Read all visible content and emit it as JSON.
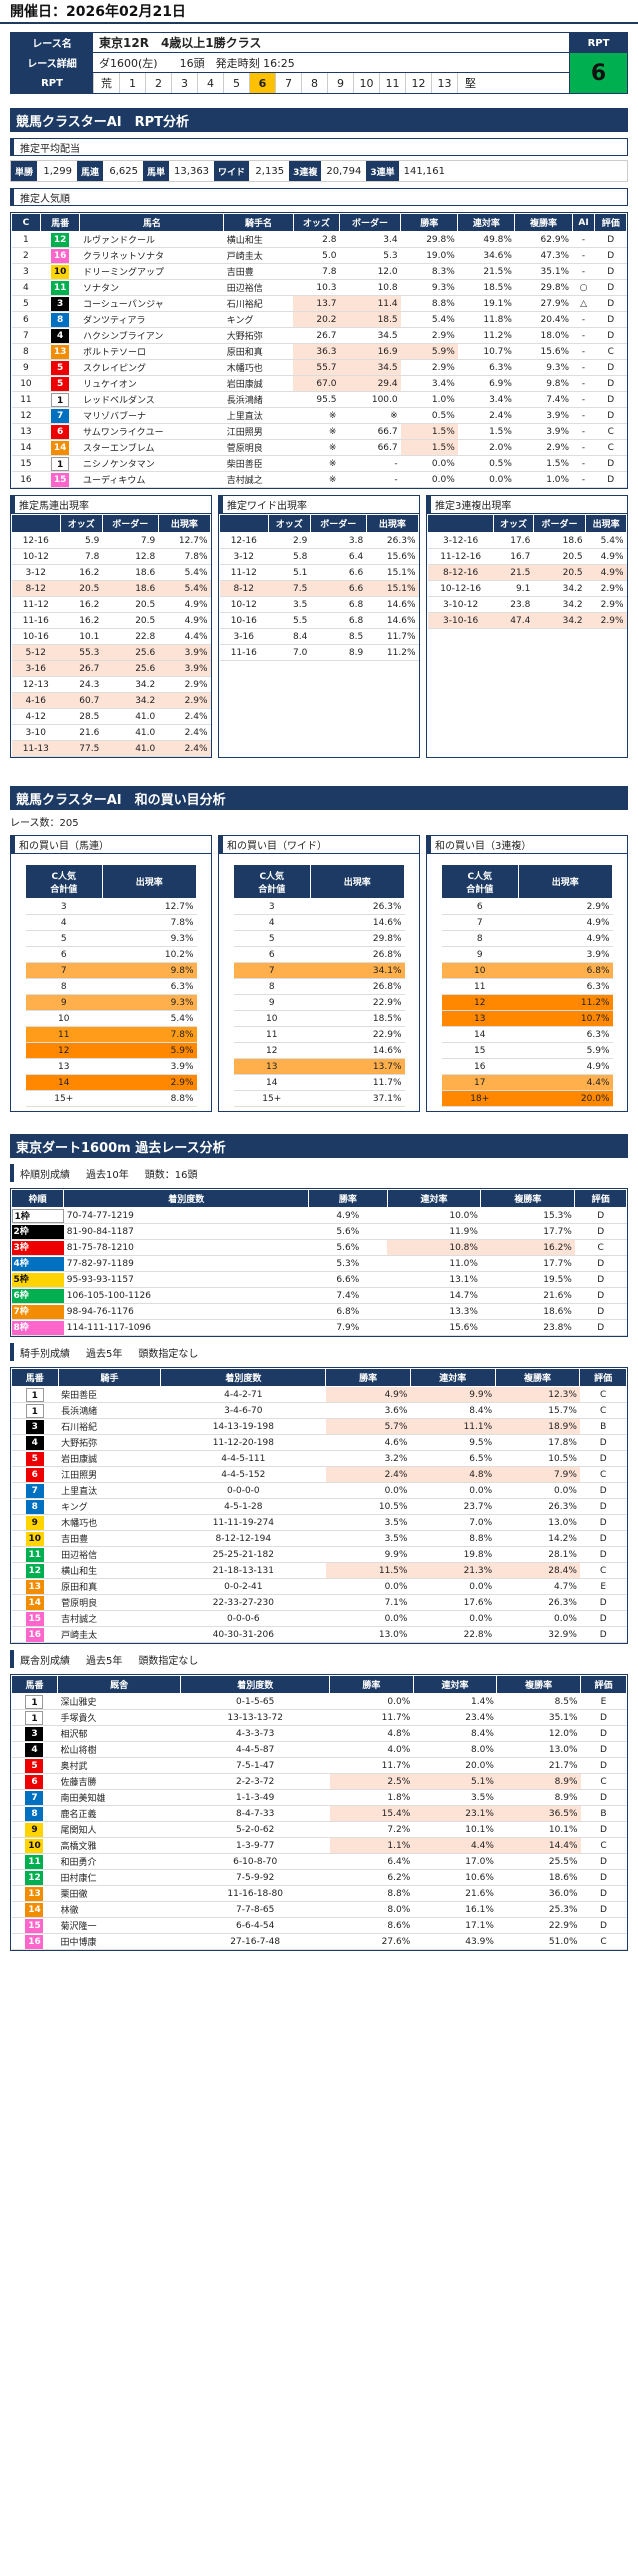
{
  "header": {
    "label": "開催日：",
    "date": "2026年02月21日"
  },
  "race": {
    "name_label": "レース名",
    "name": "東京12R　4歳以上1勝クラス",
    "detail_label": "レース詳細",
    "detail_course": "ダ1600(左)",
    "detail_heads": "16頭",
    "detail_time": "発走時刻 16:25",
    "rpt_label": "RPT",
    "rpt_first": "荒",
    "rpt_nums": [
      "1",
      "2",
      "3",
      "4",
      "5",
      "6",
      "7",
      "8",
      "9",
      "10",
      "11",
      "12",
      "13"
    ],
    "rpt_last": "堅",
    "rpt_selected": "6",
    "rpt_box_label": "RPT",
    "rpt_value": "6"
  },
  "sec1": {
    "title": "競馬クラスターAI　RPT分析"
  },
  "haito": {
    "title": "推定平均配当",
    "items": [
      [
        "単勝",
        "1,299"
      ],
      [
        "馬連",
        "6,625"
      ],
      [
        "馬単",
        "13,363"
      ],
      [
        "ワイド",
        "2,135"
      ],
      [
        "3連複",
        "20,794"
      ],
      [
        "3連単",
        "141,161"
      ]
    ]
  },
  "ninki": {
    "title": "推定人気順",
    "headers": [
      "C",
      "馬番",
      "馬名",
      "騎手名",
      "オッズ",
      "ボーダー",
      "勝率",
      "連対率",
      "複勝率",
      "AI",
      "評価"
    ],
    "rows": [
      [
        "1",
        "12",
        "ルヴァンドクール",
        "横山和生",
        "2.8",
        "3.4",
        "29.8%",
        "49.8%",
        "62.9%",
        "-",
        "D"
      ],
      [
        "2",
        "16",
        "クラリネットソナタ",
        "戸崎圭太",
        "5.0",
        "5.3",
        "19.0%",
        "34.6%",
        "47.3%",
        "-",
        "D"
      ],
      [
        "3",
        "10",
        "ドリーミングアップ",
        "吉田豊",
        "7.8",
        "12.0",
        "8.3%",
        "21.5%",
        "35.1%",
        "-",
        "D"
      ],
      [
        "4",
        "11",
        "ソナタン",
        "田辺裕信",
        "10.3",
        "10.8",
        "9.3%",
        "18.5%",
        "29.8%",
        "○",
        "D"
      ],
      [
        "5",
        "3",
        "コーシューパンジャ",
        "石川裕紀",
        "13.7",
        "11.4",
        "8.8%",
        "19.1%",
        "27.9%",
        "△",
        "D"
      ],
      [
        "6",
        "8",
        "ダンツティアラ",
        "キング",
        "20.2",
        "18.5",
        "5.4%",
        "11.8%",
        "20.4%",
        "-",
        "D"
      ],
      [
        "7",
        "4",
        "ハクシンブライアン",
        "大野拓弥",
        "26.7",
        "34.5",
        "2.9%",
        "11.2%",
        "18.0%",
        "-",
        "D"
      ],
      [
        "8",
        "13",
        "ボルトテソーロ",
        "原田和真",
        "36.3",
        "16.9",
        "5.9%",
        "10.7%",
        "15.6%",
        "-",
        "C"
      ],
      [
        "9",
        "5",
        "スクレイピング",
        "木幡巧也",
        "55.7",
        "34.5",
        "2.9%",
        "6.3%",
        "9.3%",
        "-",
        "D"
      ],
      [
        "10",
        "5",
        "リュケイオン",
        "岩田康誠",
        "67.0",
        "29.4",
        "3.4%",
        "6.9%",
        "9.8%",
        "-",
        "D"
      ],
      [
        "11",
        "1",
        "レッドベルダンス",
        "長浜鴻緒",
        "95.5",
        "100.0",
        "1.0%",
        "3.4%",
        "7.4%",
        "-",
        "D"
      ],
      [
        "12",
        "7",
        "マリゾバブーナ",
        "上里直汰",
        "※",
        "※",
        "0.5%",
        "2.4%",
        "3.9%",
        "-",
        "D"
      ],
      [
        "13",
        "6",
        "サムワンライクユー",
        "江田照男",
        "※",
        "66.7",
        "1.5%",
        "1.5%",
        "3.9%",
        "-",
        "C"
      ],
      [
        "14",
        "14",
        "スターエンブレム",
        "菅原明良",
        "※",
        "66.7",
        "1.5%",
        "2.0%",
        "2.9%",
        "-",
        "C"
      ],
      [
        "15",
        "1",
        "ニシノケンタマン",
        "柴田善臣",
        "※",
        "-",
        "0.0%",
        "0.5%",
        "1.5%",
        "-",
        "D"
      ],
      [
        "16",
        "15",
        "ユーディキウム",
        "吉村誠之",
        "※",
        "-",
        "0.0%",
        "0.0%",
        "1.0%",
        "-",
        "D"
      ]
    ]
  },
  "umaren": {
    "title": "推定馬連出現率",
    "headers": [
      "",
      "オッズ",
      "ボーダー",
      "出現率"
    ],
    "rows": [
      [
        "12-16",
        "5.9",
        "7.9",
        "12.7%"
      ],
      [
        "10-12",
        "7.8",
        "12.8",
        "7.8%"
      ],
      [
        "3-12",
        "16.2",
        "18.6",
        "5.4%"
      ],
      [
        "8-12",
        "20.5",
        "18.6",
        "5.4%"
      ],
      [
        "11-12",
        "16.2",
        "20.5",
        "4.9%"
      ],
      [
        "11-16",
        "16.2",
        "20.5",
        "4.9%"
      ],
      [
        "10-16",
        "10.1",
        "22.8",
        "4.4%"
      ],
      [
        "5-12",
        "55.3",
        "25.6",
        "3.9%"
      ],
      [
        "3-16",
        "26.7",
        "25.6",
        "3.9%"
      ],
      [
        "12-13",
        "24.3",
        "34.2",
        "2.9%"
      ],
      [
        "4-16",
        "60.7",
        "34.2",
        "2.9%"
      ],
      [
        "4-12",
        "28.5",
        "41.0",
        "2.4%"
      ],
      [
        "3-10",
        "21.6",
        "41.0",
        "2.4%"
      ],
      [
        "11-13",
        "77.5",
        "41.0",
        "2.4%"
      ]
    ]
  },
  "wide": {
    "title": "推定ワイド出現率",
    "headers": [
      "",
      "オッズ",
      "ボーダー",
      "出現率"
    ],
    "rows": [
      [
        "12-16",
        "2.9",
        "3.8",
        "26.3%"
      ],
      [
        "3-12",
        "5.8",
        "6.4",
        "15.6%"
      ],
      [
        "11-12",
        "5.1",
        "6.6",
        "15.1%"
      ],
      [
        "8-12",
        "7.5",
        "6.6",
        "15.1%"
      ],
      [
        "10-12",
        "3.5",
        "6.8",
        "14.6%"
      ],
      [
        "10-16",
        "5.5",
        "6.8",
        "14.6%"
      ],
      [
        "3-16",
        "8.4",
        "8.5",
        "11.7%"
      ],
      [
        "11-16",
        "7.0",
        "8.9",
        "11.2%"
      ]
    ]
  },
  "sanren": {
    "title": "推定3連複出現率",
    "headers": [
      "",
      "オッズ",
      "ボーダー",
      "出現率"
    ],
    "rows": [
      [
        "3-12-16",
        "17.6",
        "18.6",
        "5.4%"
      ],
      [
        "11-12-16",
        "16.7",
        "20.5",
        "4.9%"
      ],
      [
        "8-12-16",
        "21.5",
        "20.5",
        "4.9%"
      ],
      [
        "10-12-16",
        "9.1",
        "34.2",
        "2.9%"
      ],
      [
        "3-10-12",
        "23.8",
        "34.2",
        "2.9%"
      ],
      [
        "3-10-16",
        "47.4",
        "34.2",
        "2.9%"
      ]
    ]
  },
  "sec2": {
    "title": "競馬クラスターAI　和の買い目分析",
    "count_label": "レース数：",
    "count": "205"
  },
  "wa": [
    {
      "title": "和の買い目（馬連）",
      "h1": "C人気\n合計値",
      "h2": "出現率",
      "rows": [
        [
          "3",
          "12.7%"
        ],
        [
          "4",
          "7.8%"
        ],
        [
          "5",
          "9.3%"
        ],
        [
          "6",
          "10.2%"
        ],
        [
          "7",
          "9.8%"
        ],
        [
          "8",
          "6.3%"
        ],
        [
          "9",
          "9.3%"
        ],
        [
          "10",
          "5.4%"
        ],
        [
          "11",
          "7.8%"
        ],
        [
          "12",
          "5.9%"
        ],
        [
          "13",
          "3.9%"
        ],
        [
          "14",
          "2.9%"
        ],
        [
          "15+",
          "8.8%"
        ]
      ]
    },
    {
      "title": "和の買い目（ワイド）",
      "h1": "C人気\n合計値",
      "h2": "出現率",
      "rows": [
        [
          "3",
          "26.3%"
        ],
        [
          "4",
          "14.6%"
        ],
        [
          "5",
          "29.8%"
        ],
        [
          "6",
          "26.8%"
        ],
        [
          "7",
          "34.1%"
        ],
        [
          "8",
          "26.8%"
        ],
        [
          "9",
          "22.9%"
        ],
        [
          "10",
          "18.5%"
        ],
        [
          "11",
          "22.9%"
        ],
        [
          "12",
          "14.6%"
        ],
        [
          "13",
          "13.7%"
        ],
        [
          "14",
          "11.7%"
        ],
        [
          "15+",
          "37.1%"
        ]
      ]
    },
    {
      "title": "和の買い目（3連複）",
      "h1": "C人気\n合計値",
      "h2": "出現率",
      "rows": [
        [
          "6",
          "2.9%"
        ],
        [
          "7",
          "4.9%"
        ],
        [
          "8",
          "4.9%"
        ],
        [
          "9",
          "3.9%"
        ],
        [
          "10",
          "6.8%"
        ],
        [
          "11",
          "6.3%"
        ],
        [
          "12",
          "11.2%"
        ],
        [
          "13",
          "10.7%"
        ],
        [
          "14",
          "6.3%"
        ],
        [
          "15",
          "5.9%"
        ],
        [
          "16",
          "4.9%"
        ],
        [
          "17",
          "4.4%"
        ],
        [
          "18+",
          "20.0%"
        ]
      ]
    }
  ],
  "sec3": {
    "title": "東京ダート1600m 過去レース分析"
  },
  "waku": {
    "title": "枠順別成績",
    "cond1": "過去10年",
    "cond2": "頭数：16頭",
    "headers": [
      "枠順",
      "着別度数",
      "勝率",
      "連対率",
      "複勝率",
      "評価"
    ],
    "rows": [
      [
        "1枠",
        "70-74-77-1219",
        "4.9%",
        "10.0%",
        "15.3%",
        "D"
      ],
      [
        "2枠",
        "81-90-84-1187",
        "5.6%",
        "11.9%",
        "17.7%",
        "D"
      ],
      [
        "3枠",
        "81-75-78-1210",
        "5.6%",
        "10.8%",
        "16.2%",
        "C"
      ],
      [
        "4枠",
        "77-82-97-1189",
        "5.3%",
        "11.0%",
        "17.7%",
        "D"
      ],
      [
        "5枠",
        "95-93-93-1157",
        "6.6%",
        "13.1%",
        "19.5%",
        "D"
      ],
      [
        "6枠",
        "106-105-100-1126",
        "7.4%",
        "14.7%",
        "21.6%",
        "D"
      ],
      [
        "7枠",
        "98-94-76-1176",
        "6.8%",
        "13.3%",
        "18.6%",
        "D"
      ],
      [
        "8枠",
        "114-111-117-1096",
        "7.9%",
        "15.6%",
        "23.8%",
        "D"
      ]
    ]
  },
  "kishu": {
    "title": "騎手別成績",
    "cond1": "過去5年",
    "cond2": "頭数指定なし",
    "headers": [
      "馬番",
      "騎手",
      "着別度数",
      "勝率",
      "連対率",
      "複勝率",
      "評価"
    ],
    "rows": [
      [
        "1",
        "柴田善臣",
        "4-4-2-71",
        "4.9%",
        "9.9%",
        "12.3%",
        "C"
      ],
      [
        "1",
        "長浜鴻緒",
        "3-4-6-70",
        "3.6%",
        "8.4%",
        "15.7%",
        "C"
      ],
      [
        "3",
        "石川裕紀",
        "14-13-19-198",
        "5.7%",
        "11.1%",
        "18.9%",
        "B"
      ],
      [
        "4",
        "大野拓弥",
        "11-12-20-198",
        "4.6%",
        "9.5%",
        "17.8%",
        "D"
      ],
      [
        "5",
        "岩田康誠",
        "4-4-5-111",
        "3.2%",
        "6.5%",
        "10.5%",
        "D"
      ],
      [
        "6",
        "江田照男",
        "4-4-5-152",
        "2.4%",
        "4.8%",
        "7.9%",
        "C"
      ],
      [
        "7",
        "上里直汰",
        "0-0-0-0",
        "0.0%",
        "0.0%",
        "0.0%",
        "D"
      ],
      [
        "8",
        "キング",
        "4-5-1-28",
        "10.5%",
        "23.7%",
        "26.3%",
        "D"
      ],
      [
        "9",
        "木幡巧也",
        "11-11-19-274",
        "3.5%",
        "7.0%",
        "13.0%",
        "D"
      ],
      [
        "10",
        "吉田豊",
        "8-12-12-194",
        "3.5%",
        "8.8%",
        "14.2%",
        "D"
      ],
      [
        "11",
        "田辺裕信",
        "25-25-21-182",
        "9.9%",
        "19.8%",
        "28.1%",
        "D"
      ],
      [
        "12",
        "横山和生",
        "21-18-13-131",
        "11.5%",
        "21.3%",
        "28.4%",
        "C"
      ],
      [
        "13",
        "原田和真",
        "0-0-2-41",
        "0.0%",
        "0.0%",
        "4.7%",
        "E"
      ],
      [
        "14",
        "菅原明良",
        "22-33-27-230",
        "7.1%",
        "17.6%",
        "26.3%",
        "D"
      ],
      [
        "15",
        "吉村誠之",
        "0-0-0-6",
        "0.0%",
        "0.0%",
        "0.0%",
        "D"
      ],
      [
        "16",
        "戸崎圭太",
        "40-30-31-206",
        "13.0%",
        "22.8%",
        "32.9%",
        "D"
      ]
    ]
  },
  "kyusha": {
    "title": "厩舎別成績",
    "cond1": "過去5年",
    "cond2": "頭数指定なし",
    "headers": [
      "馬番",
      "厩舎",
      "着別度数",
      "勝率",
      "連対率",
      "複勝率",
      "評価"
    ],
    "rows": [
      [
        "1",
        "深山雅史",
        "0-1-5-65",
        "0.0%",
        "1.4%",
        "8.5%",
        "E"
      ],
      [
        "1",
        "手塚貴久",
        "13-13-13-72",
        "11.7%",
        "23.4%",
        "35.1%",
        "D"
      ],
      [
        "3",
        "相沢郁",
        "4-3-3-73",
        "4.8%",
        "8.4%",
        "12.0%",
        "D"
      ],
      [
        "4",
        "松山将樹",
        "4-4-5-87",
        "4.0%",
        "8.0%",
        "13.0%",
        "D"
      ],
      [
        "5",
        "奥村武",
        "7-5-1-47",
        "11.7%",
        "20.0%",
        "21.7%",
        "D"
      ],
      [
        "6",
        "佐藤吉勝",
        "2-2-3-72",
        "2.5%",
        "5.1%",
        "8.9%",
        "C"
      ],
      [
        "7",
        "南田美知雄",
        "1-1-3-49",
        "1.8%",
        "3.5%",
        "8.9%",
        "D"
      ],
      [
        "8",
        "鹿名正義",
        "8-4-7-33",
        "15.4%",
        "23.1%",
        "36.5%",
        "B"
      ],
      [
        "9",
        "尾関知人",
        "5-2-0-62",
        "7.2%",
        "10.1%",
        "10.1%",
        "D"
      ],
      [
        "10",
        "高橋文雅",
        "1-3-9-77",
        "1.1%",
        "4.4%",
        "14.4%",
        "C"
      ],
      [
        "11",
        "和田勇介",
        "6-10-8-70",
        "6.4%",
        "17.0%",
        "25.5%",
        "D"
      ],
      [
        "12",
        "田村康仁",
        "7-5-9-92",
        "6.2%",
        "10.6%",
        "18.6%",
        "D"
      ],
      [
        "13",
        "栗田徹",
        "11-16-18-80",
        "8.8%",
        "21.6%",
        "36.0%",
        "D"
      ],
      [
        "14",
        "林徹",
        "7-7-8-65",
        "8.0%",
        "16.1%",
        "25.3%",
        "D"
      ],
      [
        "15",
        "菊沢隆一",
        "6-6-4-54",
        "8.6%",
        "17.1%",
        "22.9%",
        "D"
      ],
      [
        "16",
        "田中博康",
        "27-16-7-48",
        "27.6%",
        "43.9%",
        "51.0%",
        "C"
      ]
    ]
  }
}
